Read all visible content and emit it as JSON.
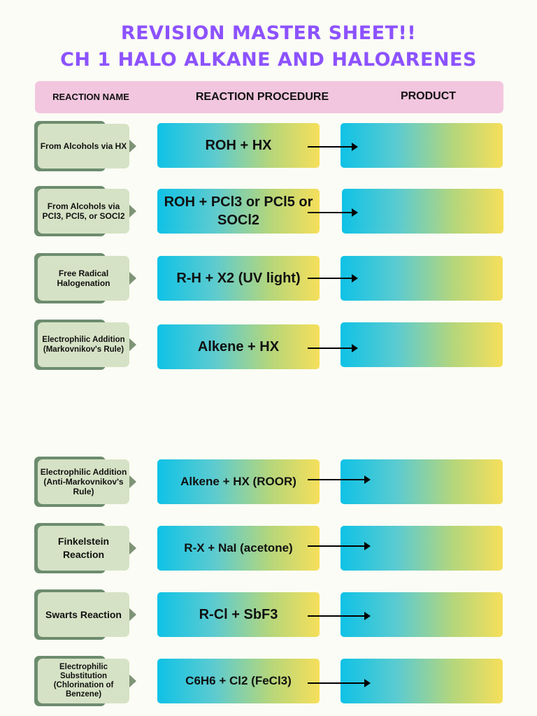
{
  "title": {
    "line1": "REVISION MASTER SHEET!!",
    "line2": "CH 1 HALO ALKANE AND HALOARENES"
  },
  "header": {
    "name": "REACTION NAME",
    "procedure": "REACTION PROCEDURE",
    "product": "PRODUCT"
  },
  "rows": [
    {
      "name": "From Alcohols via HX",
      "procedure": "ROH + HX",
      "product": ""
    },
    {
      "name": "From Alcohols via PCl3, PCl5, or SOCl2",
      "procedure": "ROH + PCl3 or PCl5 or SOCl2",
      "product": ""
    },
    {
      "name": "Free Radical Halogenation",
      "procedure": "R-H + X2 (UV light)",
      "product": ""
    },
    {
      "name": "Electrophilic Addition (Markovnikov's Rule)",
      "procedure": "Alkene + HX",
      "product": ""
    },
    {
      "name": "Electrophilic Addition (Anti-Markovnikov's Rule)",
      "procedure": "Alkene + HX (ROOR)",
      "product": ""
    },
    {
      "name": "Finkelstein Reaction",
      "procedure": "R-X + NaI (acetone)",
      "product": ""
    },
    {
      "name": "Swarts Reaction",
      "procedure": "R-Cl + SbF3",
      "product": ""
    },
    {
      "name": "Electrophilic Substitution (Chlorination of Benzene)",
      "procedure": "C6H6 + Cl2 (FeCl3)",
      "product": ""
    }
  ],
  "colors": {
    "title": "#8c52ff",
    "header_bg": "#f2c6df",
    "name_card": "#d6e2c5",
    "name_back": "#6c8c6e",
    "gradient_start": "#0fc2e6",
    "gradient_end": "#f6df5a"
  }
}
